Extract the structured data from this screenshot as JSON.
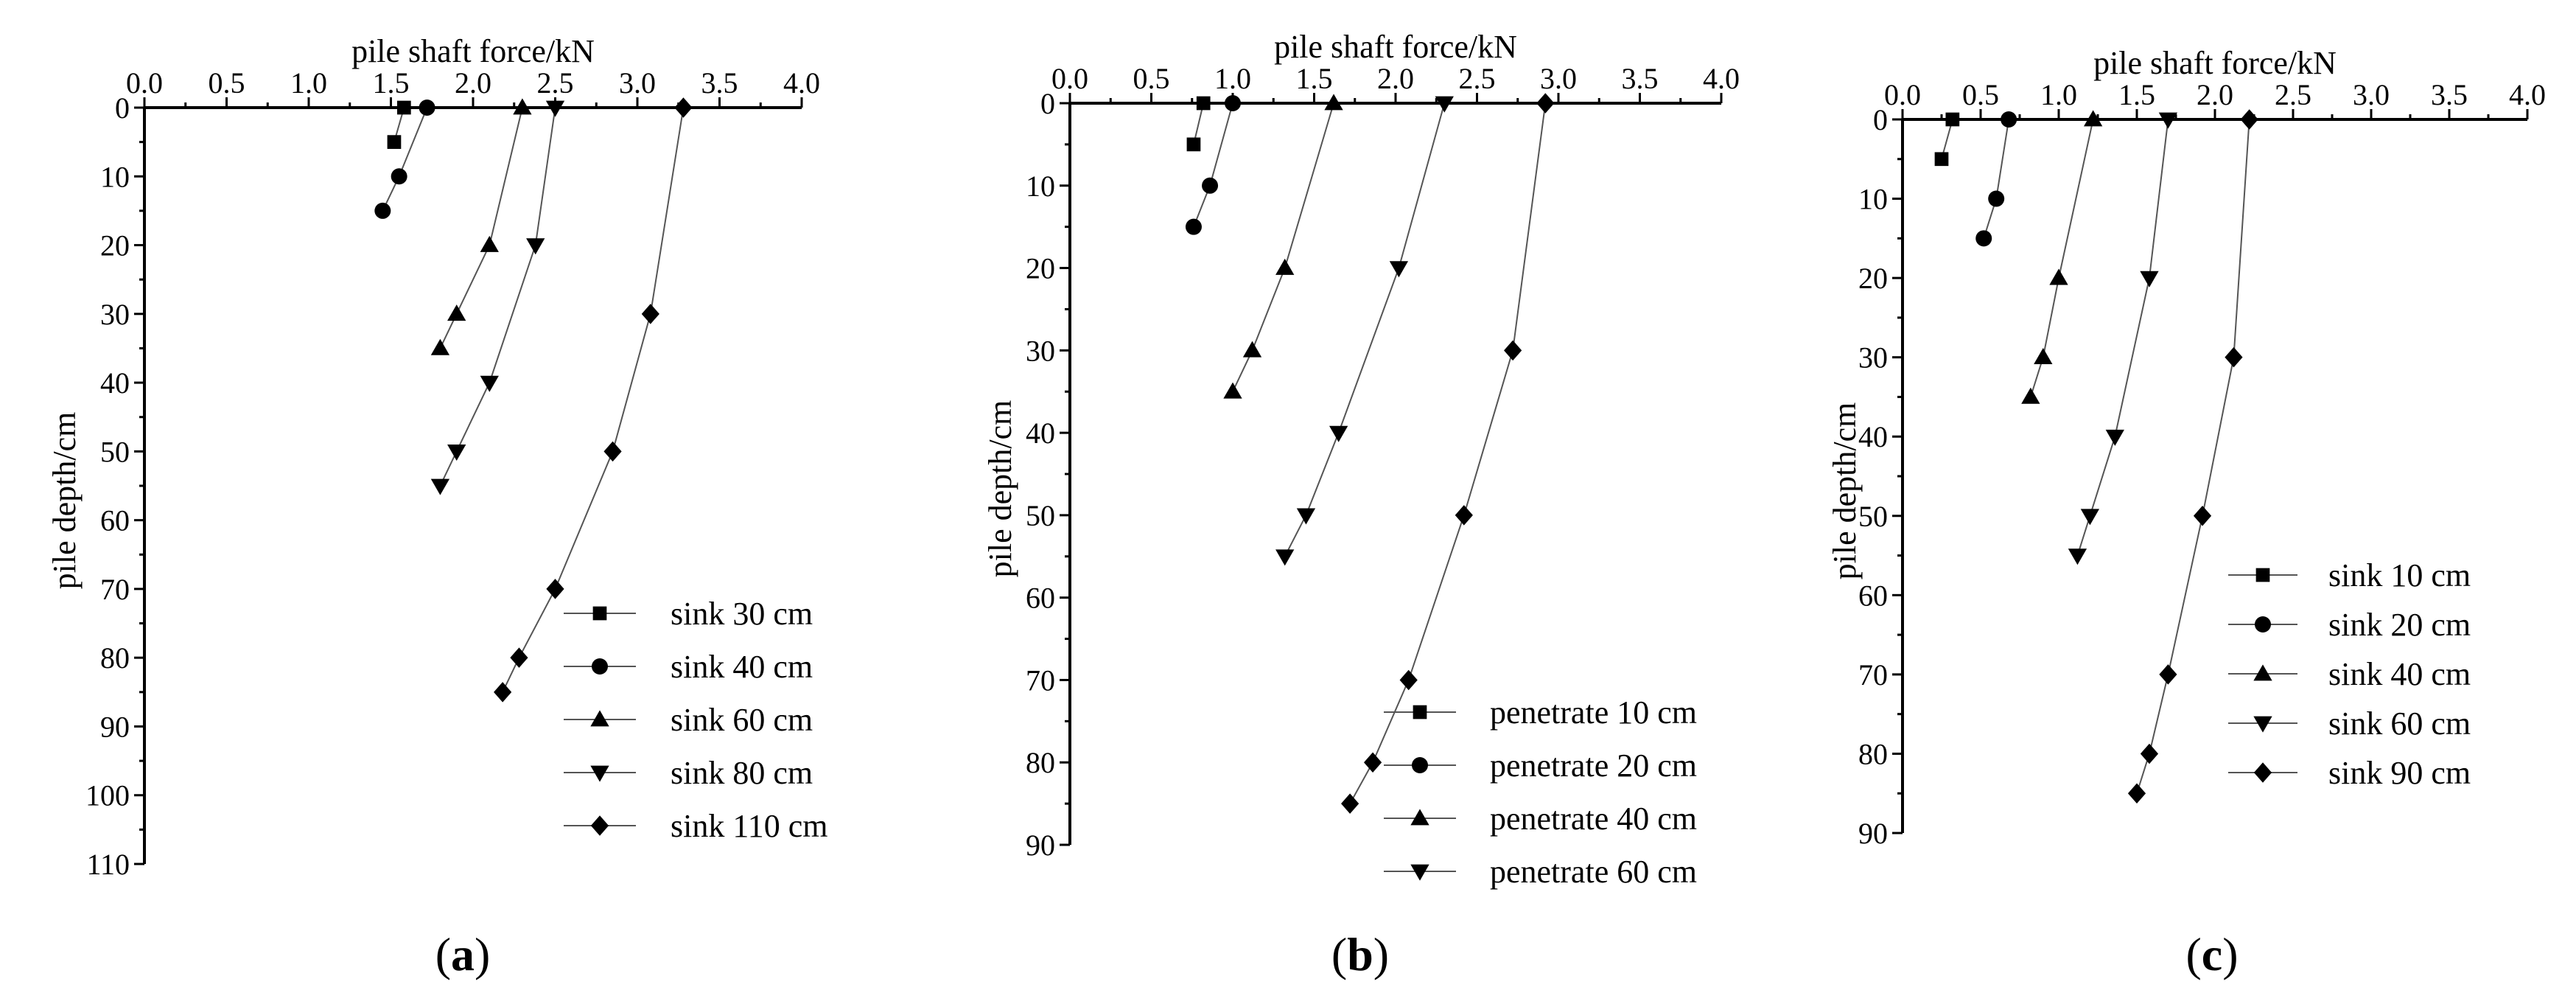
{
  "chart_data": [
    {
      "type": "line",
      "panel_label": "(a)",
      "panel_letter": "a",
      "xlabel": "pile shaft force/kN",
      "ylabel": "pile depth/cm",
      "xlim": [
        0,
        4
      ],
      "ylim": [
        0,
        110
      ],
      "xticks": [
        "0.0",
        "0.5",
        "1.0",
        "1.5",
        "2.0",
        "2.5",
        "3.0",
        "3.5",
        "4.0"
      ],
      "yticks": [
        "0",
        "10",
        "20",
        "30",
        "40",
        "50",
        "60",
        "70",
        "80",
        "90",
        "100",
        "110"
      ],
      "legend_position": "bottom-right",
      "series": [
        {
          "name": "sink 30 cm",
          "marker": "square",
          "points": [
            [
              1.58,
              0
            ],
            [
              1.52,
              5
            ]
          ]
        },
        {
          "name": "sink 40 cm",
          "marker": "circle",
          "points": [
            [
              1.72,
              0
            ],
            [
              1.55,
              10
            ],
            [
              1.45,
              15
            ]
          ]
        },
        {
          "name": "sink  60 cm",
          "marker": "triangle-up",
          "points": [
            [
              2.3,
              0
            ],
            [
              2.1,
              20
            ],
            [
              1.9,
              30
            ],
            [
              1.8,
              35
            ]
          ]
        },
        {
          "name": "sink  80 cm",
          "marker": "triangle-down",
          "points": [
            [
              2.5,
              0
            ],
            [
              2.38,
              20
            ],
            [
              2.1,
              40
            ],
            [
              1.9,
              50
            ],
            [
              1.8,
              55
            ]
          ]
        },
        {
          "name": "sink 110 cm",
          "marker": "diamond",
          "points": [
            [
              3.28,
              0
            ],
            [
              3.08,
              30
            ],
            [
              2.85,
              50
            ],
            [
              2.5,
              70
            ],
            [
              2.28,
              80
            ],
            [
              2.18,
              85
            ]
          ]
        }
      ]
    },
    {
      "type": "line",
      "panel_label": "(b)",
      "panel_letter": "b",
      "xlabel": "pile shaft force/kN",
      "ylabel": "pile depth/cm",
      "xlim": [
        0,
        4
      ],
      "ylim": [
        0,
        90
      ],
      "xticks": [
        "0.0",
        "0.5",
        "1.0",
        "1.5",
        "2.0",
        "2.5",
        "3.0",
        "3.5",
        "4.0"
      ],
      "yticks": [
        "0",
        "10",
        "20",
        "30",
        "40",
        "50",
        "60",
        "70",
        "80",
        "90"
      ],
      "legend_position": "bottom-right",
      "series": [
        {
          "name": "penetrate  10 cm",
          "marker": "square",
          "points": [
            [
              0.82,
              0
            ],
            [
              0.76,
              5
            ]
          ]
        },
        {
          "name": "penetrate  20 cm",
          "marker": "circle",
          "points": [
            [
              1.0,
              0
            ],
            [
              0.86,
              10
            ],
            [
              0.76,
              15
            ]
          ]
        },
        {
          "name": "penetrate 40 cm",
          "marker": "triangle-up",
          "points": [
            [
              1.62,
              0
            ],
            [
              1.32,
              20
            ],
            [
              1.12,
              30
            ],
            [
              1.0,
              35
            ]
          ]
        },
        {
          "name": "penetrate 60 cm",
          "marker": "triangle-down",
          "points": [
            [
              2.3,
              0
            ],
            [
              2.02,
              20
            ],
            [
              1.65,
              40
            ],
            [
              1.45,
              50
            ],
            [
              1.32,
              55
            ]
          ]
        },
        {
          "name": "",
          "marker": "diamond",
          "points": [
            [
              2.92,
              0
            ],
            [
              2.72,
              30
            ],
            [
              2.42,
              50
            ],
            [
              2.08,
              70
            ],
            [
              1.86,
              80
            ],
            [
              1.72,
              85
            ]
          ]
        }
      ]
    },
    {
      "type": "line",
      "panel_label": "(c)",
      "panel_letter": "c",
      "xlabel": "pile shaft force/kN",
      "ylabel": "pile depth/cm",
      "xlim": [
        0,
        4
      ],
      "ylim": [
        0,
        90
      ],
      "xticks": [
        "0.0",
        "0.5",
        "1.0",
        "1.5",
        "2.0",
        "2.5",
        "3.0",
        "3.5",
        "4.0"
      ],
      "yticks": [
        "0",
        "10",
        "20",
        "30",
        "40",
        "50",
        "60",
        "70",
        "80",
        "90"
      ],
      "legend_position": "bottom-right",
      "series": [
        {
          "name": "sink 10 cm",
          "marker": "square",
          "points": [
            [
              0.32,
              0
            ],
            [
              0.25,
              5
            ]
          ]
        },
        {
          "name": "sink  20 cm",
          "marker": "circle",
          "points": [
            [
              0.68,
              0
            ],
            [
              0.6,
              10
            ],
            [
              0.52,
              15
            ]
          ]
        },
        {
          "name": "sink  40 cm",
          "marker": "triangle-up",
          "points": [
            [
              1.22,
              0
            ],
            [
              1.0,
              20
            ],
            [
              0.9,
              30
            ],
            [
              0.82,
              35
            ]
          ]
        },
        {
          "name": "sink  60 cm",
          "marker": "triangle-down",
          "points": [
            [
              1.7,
              0
            ],
            [
              1.58,
              20
            ],
            [
              1.36,
              40
            ],
            [
              1.2,
              50
            ],
            [
              1.12,
              55
            ]
          ]
        },
        {
          "name": "sink  90 cm",
          "marker": "diamond",
          "points": [
            [
              2.22,
              0
            ],
            [
              2.12,
              30
            ],
            [
              1.92,
              50
            ],
            [
              1.7,
              70
            ],
            [
              1.58,
              80
            ],
            [
              1.5,
              85
            ]
          ]
        }
      ]
    }
  ]
}
